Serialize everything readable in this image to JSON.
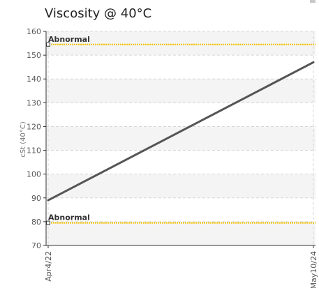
{
  "chart_data": {
    "type": "line",
    "title": "Viscosity @ 40°C",
    "ylabel": "cSt (40°C)",
    "xlabel": "",
    "ylim": [
      70,
      160
    ],
    "yticks": [
      70,
      80,
      90,
      100,
      110,
      120,
      130,
      140,
      150,
      160
    ],
    "x_categories": [
      "Apr4/22",
      "May10/24"
    ],
    "series": [
      {
        "values": [
          89,
          147
        ],
        "color": "#555555"
      }
    ],
    "reference_lines": [
      {
        "label": "Abnormal",
        "value": 154.5,
        "color": "#f2c200"
      },
      {
        "label": "Abnormal",
        "value": 79.5,
        "color": "#f2c200"
      }
    ],
    "grid": true,
    "band_color": "#f4f4f4",
    "axis_color": "#333333"
  }
}
